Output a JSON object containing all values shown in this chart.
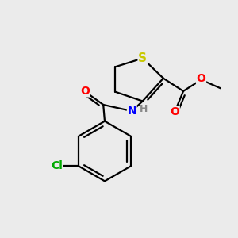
{
  "background_color": "#ebebeb",
  "bond_color": "#000000",
  "S_color": "#c8c800",
  "N_color": "#0000ff",
  "O_color": "#ff0000",
  "Cl_color": "#00aa00",
  "H_color": "#888888",
  "line_width": 1.6,
  "figsize": [
    3.0,
    3.0
  ],
  "dpi": 100,
  "xlim": [
    -0.2,
    3.0
  ],
  "ylim": [
    -0.3,
    3.0
  ]
}
